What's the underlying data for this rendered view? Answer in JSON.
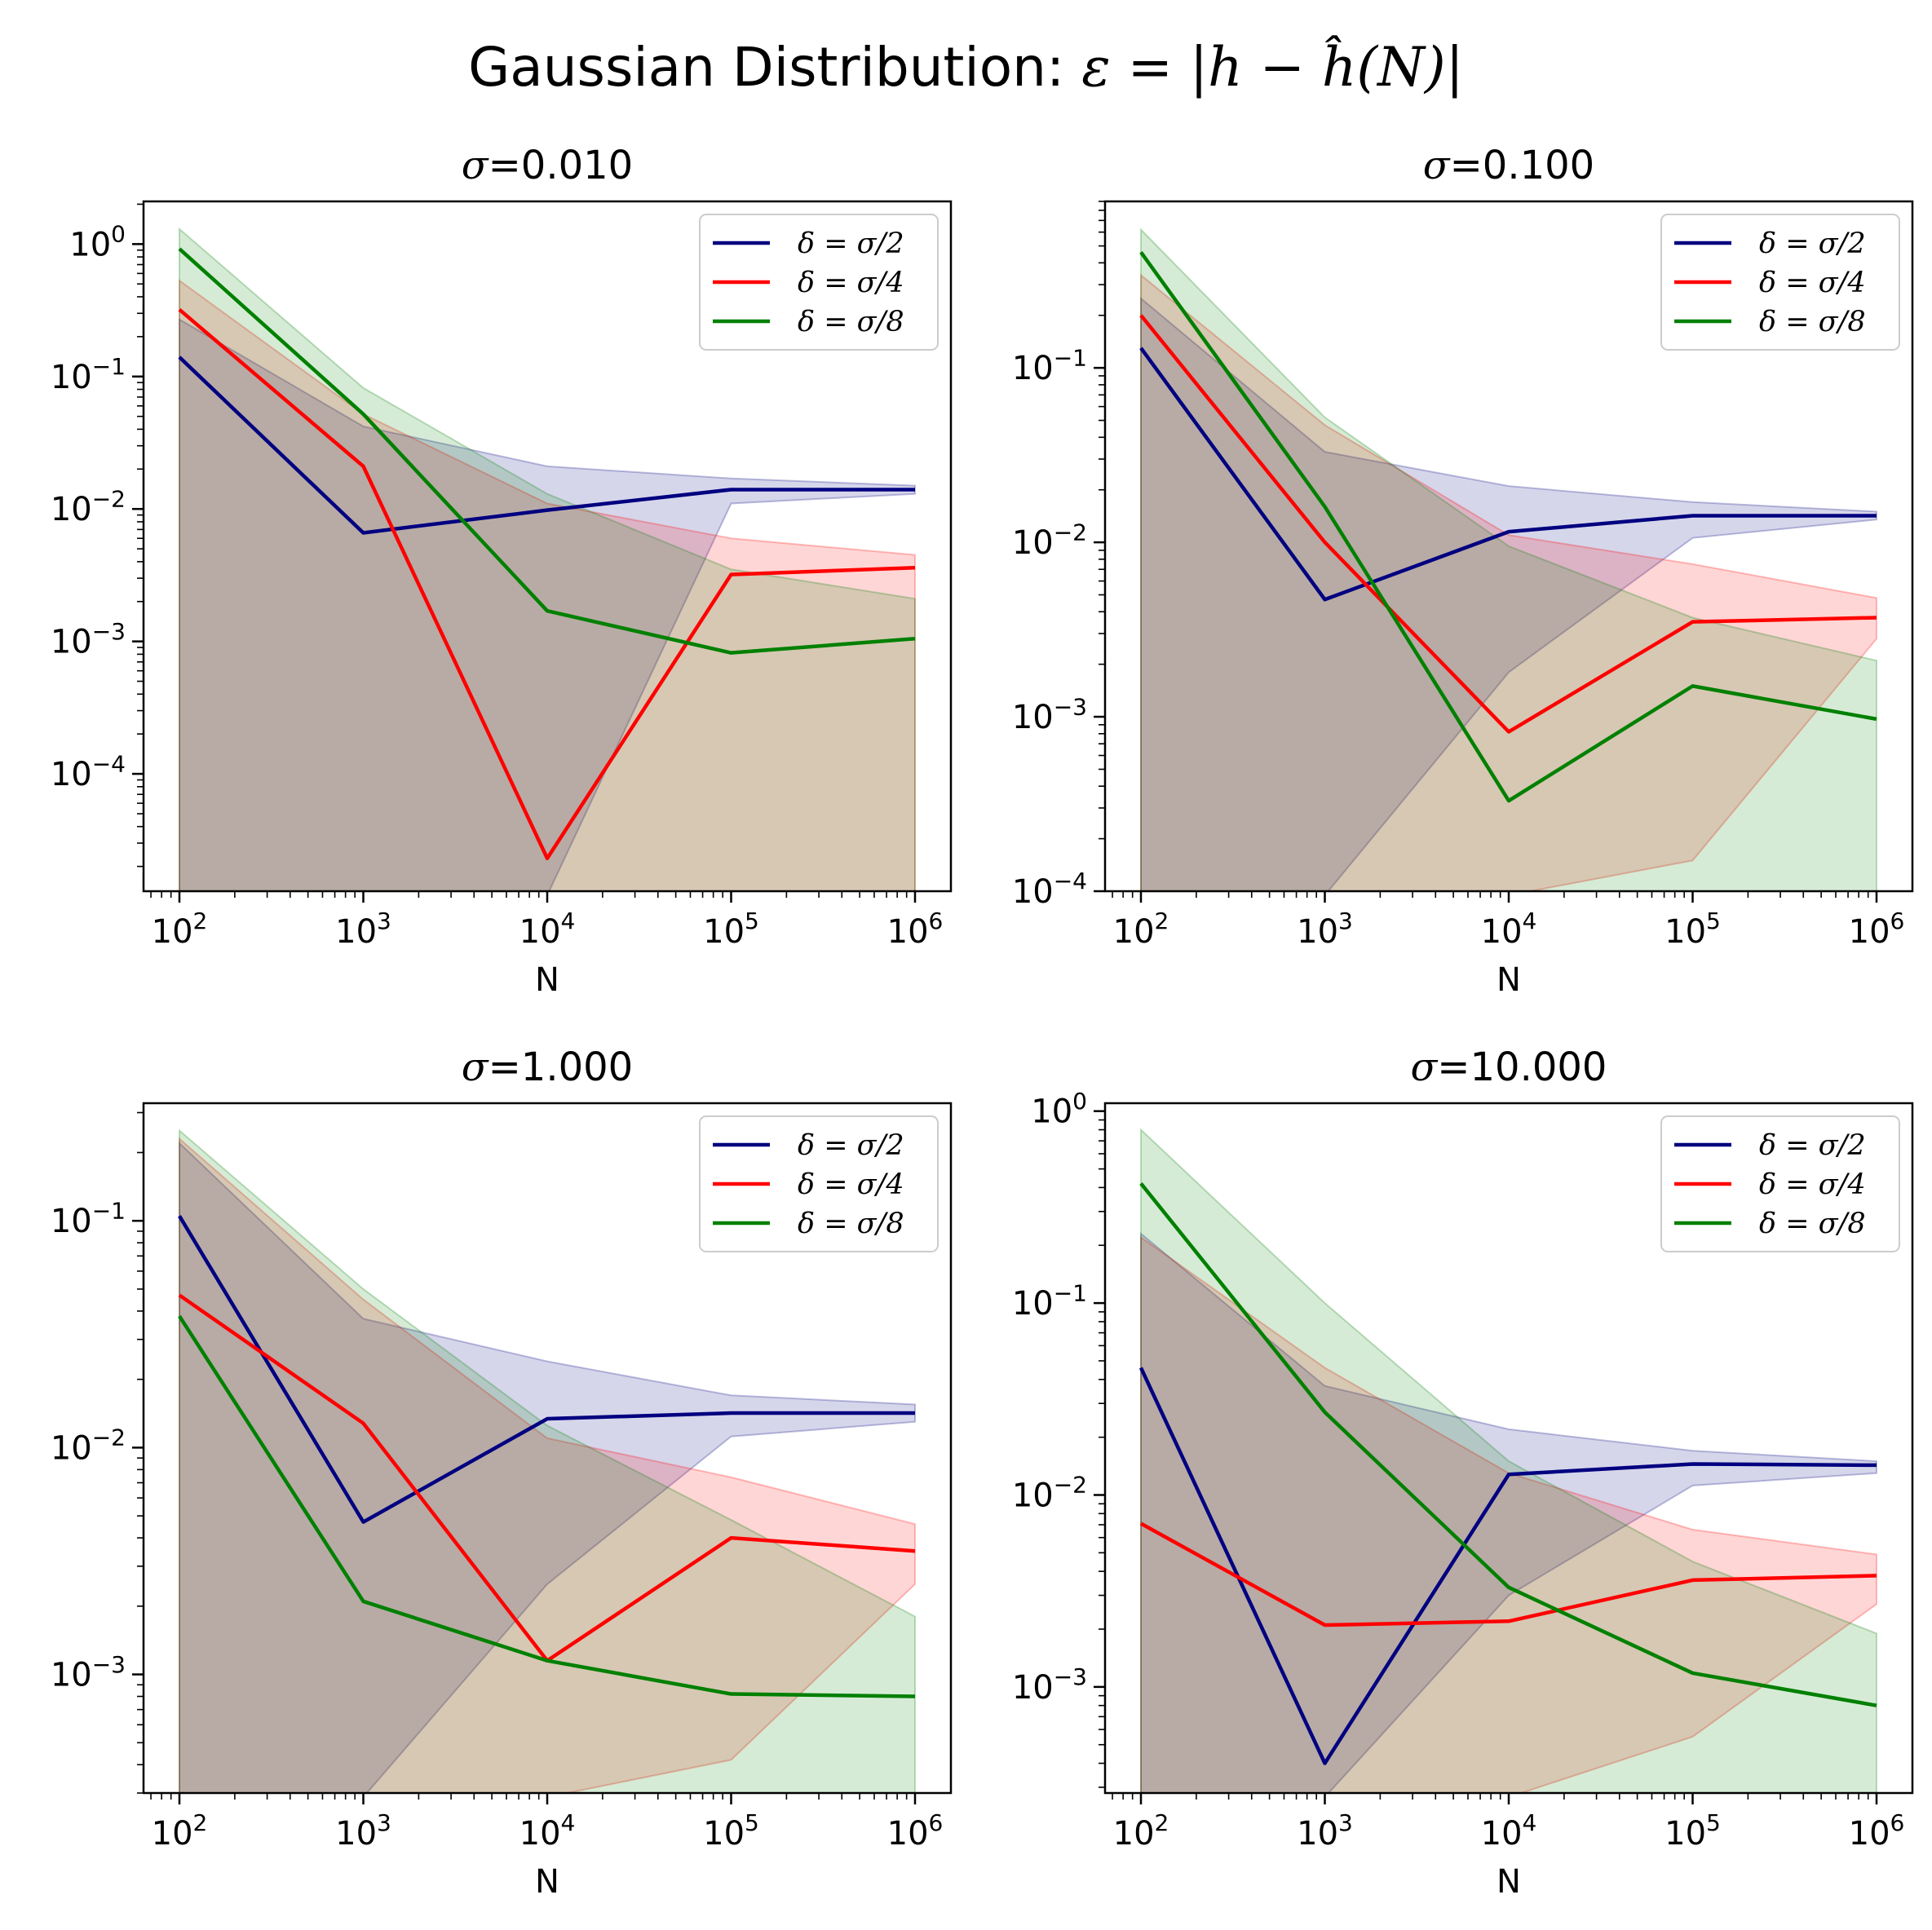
{
  "title_prefix": "Gaussian Distribution:",
  "title_formula": "ε = |h − ĥ(N)|",
  "colors": {
    "navy": "#000080",
    "red": "#ff0000",
    "green": "#008000"
  },
  "chart_data": [
    {
      "type": "line",
      "title": "σ=0.010",
      "xlabel": "N",
      "xscale": "log",
      "yscale": "log",
      "xlim": [
        100.0,
        1000000.0
      ],
      "ylim": [
        1.3e-05,
        2.1
      ],
      "x": [
        100,
        1000,
        10000,
        100000,
        1000000
      ],
      "x_tick_labels": [
        "10^2",
        "10^3",
        "10^4",
        "10^5",
        "10^6"
      ],
      "y_ticks": [
        0.0001,
        0.001,
        0.01,
        0.1,
        1
      ],
      "y_tick_labels": [
        "10^-4",
        "10^-3",
        "10^-2",
        "10^-1",
        "10^0"
      ],
      "legend": "top-right",
      "series": [
        {
          "name": "δ = σ/2",
          "color": "#000080",
          "values": [
            0.14,
            0.0066,
            0.0098,
            0.014,
            0.014
          ],
          "band_upper": [
            0.27,
            0.042,
            0.021,
            0.017,
            0.015
          ],
          "band_lower": [
            null,
            null,
            null,
            0.011,
            0.013
          ]
        },
        {
          "name": "δ = σ/4",
          "color": "#ff0000",
          "values": [
            0.32,
            0.021,
            2.3e-05,
            0.0032,
            0.0036
          ],
          "band_upper": [
            0.53,
            0.052,
            0.011,
            0.006,
            0.0045
          ],
          "band_lower": [
            null,
            null,
            null,
            null,
            null
          ]
        },
        {
          "name": "δ = σ/8",
          "color": "#008000",
          "values": [
            0.92,
            0.052,
            0.0017,
            0.00082,
            0.00105
          ],
          "band_upper": [
            1.3,
            0.082,
            0.013,
            0.0035,
            0.0021
          ],
          "band_lower": [
            null,
            null,
            null,
            null,
            null
          ]
        }
      ]
    },
    {
      "type": "line",
      "title": "σ=0.100",
      "xlabel": "N",
      "xscale": "log",
      "yscale": "log",
      "xlim": [
        100.0,
        1000000.0
      ],
      "ylim": [
        0.0001,
        0.9
      ],
      "x": [
        100,
        1000,
        10000,
        100000,
        1000000
      ],
      "x_tick_labels": [
        "10^2",
        "10^3",
        "10^4",
        "10^5",
        "10^6"
      ],
      "y_ticks": [
        0.0001,
        0.001,
        0.01,
        0.1
      ],
      "y_tick_labels": [
        "10^-4",
        "10^-3",
        "10^-2",
        "10^-1"
      ],
      "legend": "top-right",
      "series": [
        {
          "name": "δ = σ/2",
          "color": "#000080",
          "values": [
            0.13,
            0.0047,
            0.0115,
            0.0142,
            0.0142
          ],
          "band_upper": [
            0.25,
            0.033,
            0.021,
            0.017,
            0.015
          ],
          "band_lower": [
            null,
            null,
            0.0018,
            0.0106,
            0.0135
          ]
        },
        {
          "name": "δ = σ/4",
          "color": "#ff0000",
          "values": [
            0.2,
            0.01,
            0.00082,
            0.0035,
            0.0037
          ],
          "band_upper": [
            0.34,
            0.047,
            0.011,
            0.0075,
            0.0048
          ],
          "band_lower": [
            null,
            null,
            null,
            0.00015,
            0.0028
          ]
        },
        {
          "name": "δ = σ/8",
          "color": "#008000",
          "values": [
            0.46,
            0.016,
            0.00033,
            0.0015,
            0.00097
          ],
          "band_upper": [
            0.62,
            0.052,
            0.0095,
            0.0037,
            0.0021
          ],
          "band_lower": [
            null,
            null,
            null,
            null,
            null
          ]
        }
      ]
    },
    {
      "type": "line",
      "title": "σ=1.000",
      "xlabel": "N",
      "xscale": "log",
      "yscale": "log",
      "xlim": [
        100.0,
        1000000.0
      ],
      "ylim": [
        0.0003,
        0.33
      ],
      "x": [
        100,
        1000,
        10000,
        100000,
        1000000
      ],
      "x_tick_labels": [
        "10^2",
        "10^3",
        "10^4",
        "10^5",
        "10^6"
      ],
      "y_ticks": [
        0.001,
        0.01,
        0.1
      ],
      "y_tick_labels": [
        "10^-3",
        "10^-2",
        "10^-1"
      ],
      "legend": "top-right",
      "series": [
        {
          "name": "δ = σ/2",
          "color": "#000080",
          "values": [
            0.105,
            0.0047,
            0.0134,
            0.0142,
            0.0142
          ],
          "band_upper": [
            0.22,
            0.037,
            0.024,
            0.017,
            0.0155
          ],
          "band_lower": [
            null,
            null,
            0.0025,
            0.0112,
            0.013
          ]
        },
        {
          "name": "δ = σ/4",
          "color": "#ff0000",
          "values": [
            0.047,
            0.0128,
            0.00115,
            0.004,
            0.0035
          ],
          "band_upper": [
            0.23,
            0.045,
            0.011,
            0.0074,
            0.0046
          ],
          "band_lower": [
            null,
            null,
            null,
            0.00042,
            0.0025
          ]
        },
        {
          "name": "δ = σ/8",
          "color": "#008000",
          "values": [
            0.038,
            0.0021,
            0.00115,
            0.00082,
            0.0008
          ],
          "band_upper": [
            0.25,
            0.05,
            0.0125,
            0.0048,
            0.0018
          ],
          "band_lower": [
            null,
            null,
            null,
            null,
            null
          ]
        }
      ]
    },
    {
      "type": "line",
      "title": "σ=10.000",
      "xlabel": "N",
      "xscale": "log",
      "yscale": "log",
      "xlim": [
        100.0,
        1000000.0
      ],
      "ylim": [
        0.00028,
        1.1
      ],
      "x": [
        100,
        1000,
        10000,
        100000,
        1000000
      ],
      "x_tick_labels": [
        "10^2",
        "10^3",
        "10^4",
        "10^5",
        "10^6"
      ],
      "y_ticks": [
        0.001,
        0.01,
        0.1,
        1
      ],
      "y_tick_labels": [
        "10^-3",
        "10^-2",
        "10^-1",
        "10^0"
      ],
      "legend": "top-right",
      "series": [
        {
          "name": "δ = σ/2",
          "color": "#000080",
          "values": [
            0.046,
            0.0004,
            0.0128,
            0.0145,
            0.0143
          ],
          "band_upper": [
            0.23,
            0.037,
            0.022,
            0.017,
            0.015
          ],
          "band_lower": [
            null,
            null,
            0.003,
            0.0112,
            0.013
          ]
        },
        {
          "name": "δ = σ/4",
          "color": "#ff0000",
          "values": [
            0.0071,
            0.0021,
            0.0022,
            0.0036,
            0.0038
          ],
          "band_upper": [
            0.22,
            0.046,
            0.013,
            0.0066,
            0.0049
          ],
          "band_lower": [
            null,
            null,
            null,
            0.00055,
            0.0027
          ]
        },
        {
          "name": "δ = σ/8",
          "color": "#008000",
          "values": [
            0.42,
            0.027,
            0.0033,
            0.00118,
            0.0008
          ],
          "band_upper": [
            0.8,
            0.1,
            0.015,
            0.0045,
            0.0019
          ],
          "band_lower": [
            null,
            null,
            null,
            null,
            null
          ]
        }
      ]
    }
  ]
}
